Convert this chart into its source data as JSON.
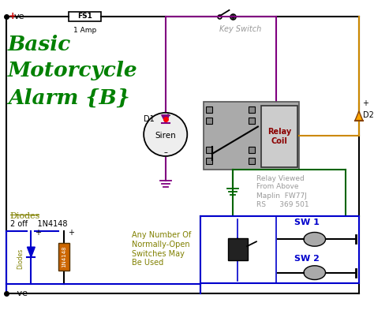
{
  "bg_color": "#ffffff",
  "wire_blue": "#0000cc",
  "wire_purple": "#800080",
  "wire_green": "#006400",
  "wire_orange": "#cc8800",
  "title_color": "#008000",
  "red_color": "#cc0000",
  "olive_color": "#808000",
  "gray_color": "#999999",
  "blue_label": "#0000cc",
  "black": "#000000",
  "relay_gray": "#aaaaaa",
  "relay_dark": "#888888",
  "coil_bg": "#cccccc",
  "switch_gray": "#aaaaaa",
  "ms_dark": "#222222",
  "diode_orange": "#cc6600",
  "label_fs1": "FS1",
  "label_1amp": "1 Amp",
  "label_key": "Key Switch",
  "label_siren": "Siren",
  "label_relay_coil": "Relay\nCoil",
  "label_relay_viewed": "Relay Viewed\nFrom Above",
  "label_maplin": "Maplin  FW77J\nRS      369 501",
  "label_d1": "D1",
  "label_d2": "D2",
  "label_diodes_hdr": "Diodes",
  "label_diodes2": "2 off    1N4148",
  "label_1n4148": "1N4148",
  "label_any": "Any Number Of\nNormally-Open\nSwitches May\nBe Used",
  "label_sw1": "SW 1",
  "label_sw2": "SW 2",
  "label_plus": "+ ve",
  "label_minus": "– ve"
}
